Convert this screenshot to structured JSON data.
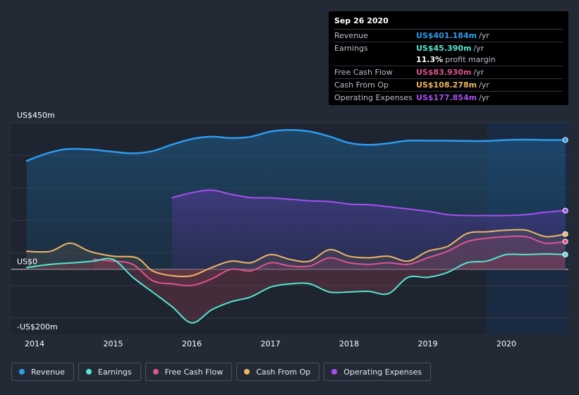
{
  "tooltip": {
    "date": "Sep 26 2020",
    "rows": [
      {
        "label": "Revenue",
        "value": "US$401.184m",
        "unit": "/yr",
        "color": "#2d9bf0"
      },
      {
        "label": "Earnings",
        "value": "US$45.390m",
        "unit": "/yr",
        "color": "#53e6d0"
      },
      {
        "label": "",
        "value": "11.3%",
        "unit": "profit margin",
        "color": "#ffffff"
      },
      {
        "label": "Free Cash Flow",
        "value": "US$83.930m",
        "unit": "/yr",
        "color": "#e0528e"
      },
      {
        "label": "Cash From Op",
        "value": "US$108.278m",
        "unit": "/yr",
        "color": "#f0b565"
      },
      {
        "label": "Operating Expenses",
        "value": "US$177.854m",
        "unit": "/yr",
        "color": "#a64ff0"
      }
    ]
  },
  "legend": [
    {
      "label": "Revenue",
      "color": "#2d9bf0"
    },
    {
      "label": "Earnings",
      "color": "#53e6d0"
    },
    {
      "label": "Free Cash Flow",
      "color": "#e0528e"
    },
    {
      "label": "Cash From Op",
      "color": "#f0b565"
    },
    {
      "label": "Operating Expenses",
      "color": "#a64ff0"
    }
  ],
  "chart_data": {
    "type": "area",
    "title": "",
    "ylim": [
      -200,
      450
    ],
    "xlim": [
      2013.9,
      2020.75
    ],
    "y_tick_labels": [
      {
        "value": 450,
        "label": "US$450m"
      },
      {
        "value": 0,
        "label": "US$0"
      },
      {
        "value": -200,
        "label": "-US$200m"
      }
    ],
    "x_tick_labels": [
      {
        "value": 2014,
        "label": "2014"
      },
      {
        "value": 2015,
        "label": "2015"
      },
      {
        "value": 2016,
        "label": "2016"
      },
      {
        "value": 2017,
        "label": "2017"
      },
      {
        "value": 2018,
        "label": "2018"
      },
      {
        "value": 2019,
        "label": "2019"
      },
      {
        "value": 2020,
        "label": "2020"
      }
    ],
    "highlight_start": 2019.75,
    "series": [
      {
        "name": "Revenue",
        "color": "#2d9bf0",
        "x": [
          2013.9,
          2014.15,
          2014.4,
          2014.7,
          2014.95,
          2015.25,
          2015.5,
          2015.75,
          2016.0,
          2016.25,
          2016.5,
          2016.75,
          2017.0,
          2017.25,
          2017.5,
          2017.75,
          2018.0,
          2018.25,
          2018.5,
          2018.75,
          2019.0,
          2019.25,
          2019.5,
          2019.75,
          2020.0,
          2020.25,
          2020.5,
          2020.75
        ],
        "y": [
          333,
          355,
          369,
          368,
          362,
          356,
          363,
          383,
          400,
          407,
          403,
          407,
          423,
          428,
          423,
          408,
          388,
          382,
          387,
          395,
          395,
          395,
          394,
          394,
          397,
          398,
          397,
          397
        ]
      },
      {
        "name": "Earnings",
        "color": "#53e6d0",
        "x": [
          2013.9,
          2014.2,
          2014.5,
          2014.75,
          2015.0,
          2015.25,
          2015.5,
          2015.75,
          2016.0,
          2016.25,
          2016.5,
          2016.75,
          2017.0,
          2017.25,
          2017.5,
          2017.75,
          2018.0,
          2018.25,
          2018.5,
          2018.75,
          2019.0,
          2019.25,
          2019.5,
          2019.75,
          2020.0,
          2020.25,
          2020.5,
          2020.75
        ],
        "y": [
          5,
          15,
          20,
          25,
          30,
          -25,
          -70,
          -115,
          -165,
          -125,
          -100,
          -85,
          -55,
          -45,
          -45,
          -70,
          -70,
          -68,
          -75,
          -25,
          -25,
          -10,
          20,
          25,
          45,
          45,
          47,
          45
        ]
      },
      {
        "name": "Free Cash Flow",
        "color": "#e0528e",
        "x": [
          2014.75,
          2015.0,
          2015.25,
          2015.5,
          2015.75,
          2016.0,
          2016.25,
          2016.5,
          2016.75,
          2017.0,
          2017.25,
          2017.5,
          2017.75,
          2018.0,
          2018.25,
          2018.5,
          2018.75,
          2019.0,
          2019.25,
          2019.5,
          2019.75,
          2020.0,
          2020.25,
          2020.5,
          2020.75
        ],
        "y": [
          30,
          25,
          15,
          -35,
          -45,
          -50,
          -30,
          0,
          -5,
          20,
          10,
          10,
          35,
          20,
          15,
          20,
          15,
          35,
          55,
          85,
          95,
          100,
          100,
          80,
          85
        ]
      },
      {
        "name": "Cash From Op",
        "color": "#f0b565",
        "x": [
          2013.9,
          2014.2,
          2014.45,
          2014.7,
          2015.0,
          2015.3,
          2015.5,
          2015.75,
          2016.0,
          2016.25,
          2016.5,
          2016.75,
          2017.0,
          2017.25,
          2017.5,
          2017.75,
          2018.0,
          2018.25,
          2018.5,
          2018.75,
          2019.0,
          2019.25,
          2019.5,
          2019.75,
          2020.0,
          2020.25,
          2020.5,
          2020.75
        ],
        "y": [
          55,
          55,
          80,
          55,
          40,
          35,
          -5,
          -20,
          -20,
          5,
          25,
          20,
          45,
          30,
          25,
          60,
          40,
          35,
          40,
          25,
          55,
          70,
          110,
          115,
          120,
          120,
          100,
          108
        ]
      },
      {
        "name": "Operating Expenses",
        "color": "#a64ff0",
        "x": [
          2015.75,
          2016.0,
          2016.25,
          2016.5,
          2016.75,
          2017.0,
          2017.25,
          2017.5,
          2017.75,
          2018.0,
          2018.25,
          2018.5,
          2018.75,
          2019.0,
          2019.25,
          2019.5,
          2019.75,
          2020.0,
          2020.25,
          2020.5,
          2020.75
        ],
        "y": [
          220,
          235,
          243,
          230,
          220,
          219,
          215,
          210,
          208,
          200,
          198,
          192,
          185,
          178,
          168,
          165,
          165,
          165,
          168,
          175,
          180
        ]
      }
    ]
  }
}
